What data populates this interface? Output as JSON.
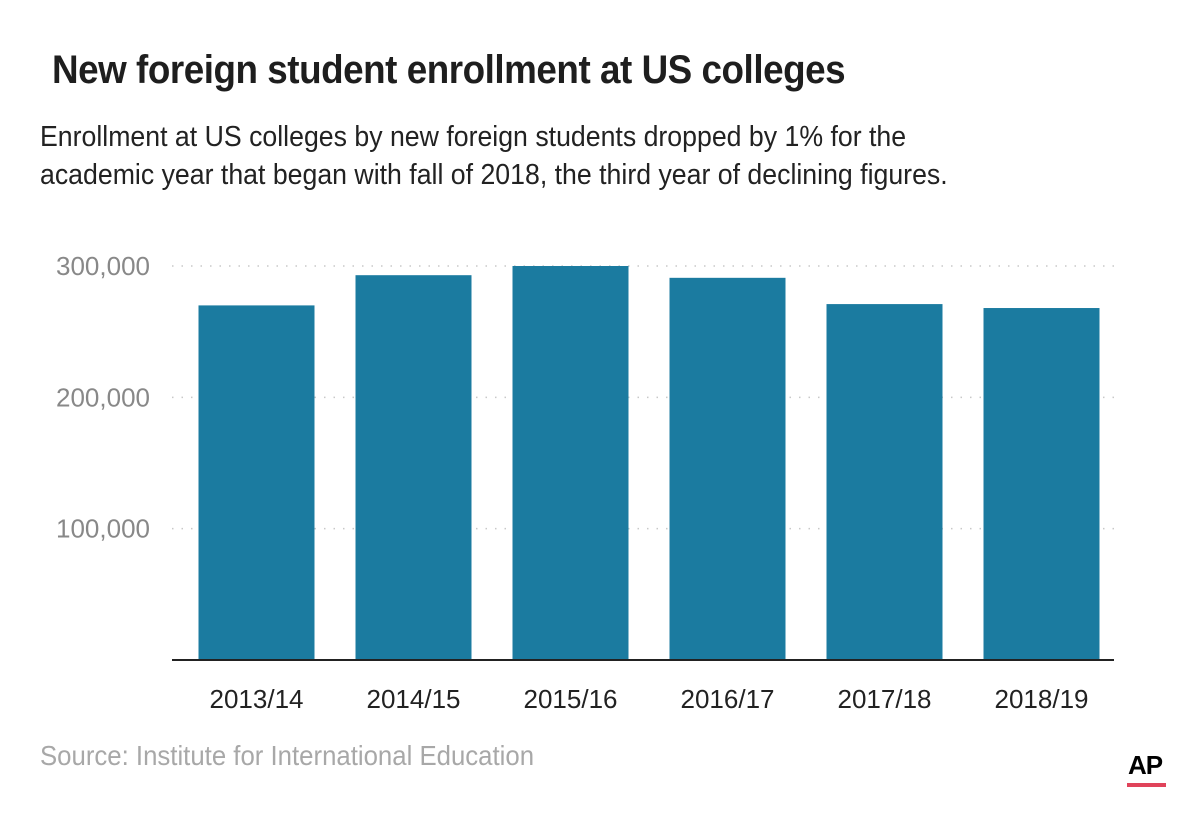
{
  "header": {
    "title": "New foreign student enrollment at US colleges",
    "subtitle_lines": [
      "Enrollment at US colleges by new foreign students dropped by 1% for the",
      "academic year that began with fall of 2018, the third year of declining figures."
    ]
  },
  "footer": {
    "source": "Source: Institute for International Education",
    "logo_text": "AP",
    "logo_accent_color": "#e0435a"
  },
  "chart_data": {
    "type": "bar",
    "title": "New foreign student enrollment at US colleges",
    "xlabel": "",
    "ylabel": "",
    "categories": [
      "2013/14",
      "2014/15",
      "2015/16",
      "2016/17",
      "2017/18",
      "2018/19"
    ],
    "values": [
      270000,
      293000,
      300000,
      291000,
      271000,
      268000
    ],
    "ylim": [
      0,
      300000
    ],
    "yticks": [
      100000,
      200000,
      300000
    ],
    "ytick_labels": [
      "100,000",
      "200,000",
      "300,000"
    ],
    "grid": true,
    "grid_style": "dotted",
    "bar_color": "#1b7ba0",
    "legend": "none"
  }
}
